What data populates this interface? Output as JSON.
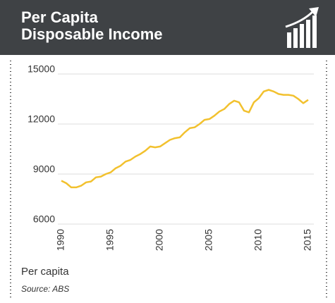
{
  "chart_data": {
    "type": "line",
    "title": "Per Capita Disposable Income",
    "x": [
      1990,
      1990.5,
      1991,
      1991.5,
      1992,
      1992.5,
      1993,
      1993.5,
      1994,
      1994.5,
      1995,
      1995.5,
      1996,
      1996.5,
      1997,
      1997.5,
      1998,
      1998.5,
      1999,
      1999.5,
      2000,
      2000.5,
      2001,
      2001.5,
      2002,
      2002.5,
      2003,
      2003.5,
      2004,
      2004.5,
      2005,
      2005.5,
      2006,
      2006.5,
      2007,
      2007.5,
      2008,
      2008.5,
      2009,
      2009.5,
      2010,
      2010.5,
      2011,
      2011.5,
      2012,
      2012.5,
      2013,
      2013.5,
      2014,
      2014.5,
      2015
    ],
    "series": [
      {
        "name": "Per capita",
        "color": "#f2c12e",
        "values": [
          8600,
          8450,
          8200,
          8200,
          8300,
          8500,
          8550,
          8800,
          8850,
          9000,
          9100,
          9350,
          9500,
          9750,
          9850,
          10050,
          10200,
          10400,
          10650,
          10600,
          10650,
          10850,
          11050,
          11150,
          11200,
          11500,
          11750,
          11800,
          12000,
          12250,
          12300,
          12500,
          12750,
          12900,
          13200,
          13400,
          13300,
          12800,
          12700,
          13300,
          13550,
          13950,
          14050,
          13950,
          13800,
          13750,
          13750,
          13700,
          13500,
          13250,
          13450
        ]
      }
    ],
    "source": "Source: ABS",
    "xlim": [
      1990,
      2015
    ],
    "xticks": [
      1990,
      1995,
      2000,
      2005,
      2010,
      2015
    ],
    "ylim": [
      6000,
      15000
    ],
    "yticks": [
      6000,
      9000,
      12000,
      15000
    ],
    "grid": true
  }
}
